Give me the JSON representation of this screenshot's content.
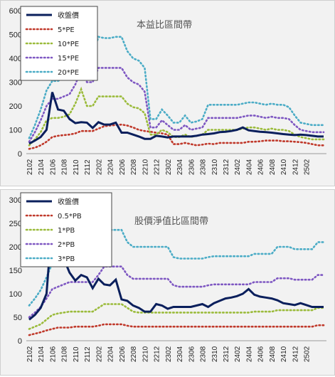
{
  "chart_data": [
    {
      "type": "line",
      "title": "本益比區間帶",
      "ylim": [
        0,
        600
      ],
      "yticks": [
        0,
        100,
        200,
        300,
        400,
        500,
        600
      ],
      "xtick_labels": [
        "2102",
        "2104",
        "2106",
        "2108",
        "2110",
        "2112",
        "2202",
        "2204",
        "2206",
        "2208",
        "2210",
        "2212",
        "2302",
        "2304",
        "2306",
        "2308",
        "2310",
        "2312",
        "2402",
        "2404",
        "2406",
        "2408",
        "2410",
        "2412",
        "2502"
      ],
      "legend_position": "top-left",
      "series": [
        {
          "name": "收盤價",
          "color": "#0a1f5c",
          "style": "solid",
          "values": [
            42,
            55,
            70,
            100,
            258,
            185,
            180,
            145,
            128,
            132,
            130,
            108,
            132,
            122,
            122,
            130,
            88,
            88,
            80,
            72,
            62,
            62,
            75,
            72,
            68,
            72,
            72,
            72,
            72,
            75,
            80,
            82,
            85,
            90,
            92,
            95,
            100,
            110,
            98,
            95,
            92,
            90,
            88,
            85,
            82,
            80,
            78,
            80,
            78,
            75,
            72,
            72
          ]
        },
        {
          "name": "5*PE",
          "color": "#c0392b",
          "style": "dotted",
          "values": [
            20,
            25,
            35,
            50,
            70,
            75,
            78,
            80,
            85,
            95,
            95,
            95,
            105,
            115,
            118,
            120,
            122,
            118,
            110,
            100,
            95,
            92,
            88,
            85,
            80,
            40,
            40,
            45,
            40,
            35,
            38,
            42,
            40,
            45,
            45,
            45,
            45,
            45,
            50,
            50,
            52,
            55,
            55,
            55,
            52,
            52,
            50,
            48,
            45,
            40,
            35,
            35
          ]
        },
        {
          "name": "10*PE",
          "color": "#9bbb3b",
          "style": "dotted",
          "values": [
            35,
            60,
            90,
            140,
            150,
            150,
            155,
            165,
            210,
            270,
            200,
            200,
            240,
            240,
            240,
            240,
            240,
            210,
            195,
            190,
            170,
            80,
            80,
            100,
            90,
            70,
            70,
            80,
            70,
            75,
            80,
            100,
            100,
            100,
            100,
            100,
            100,
            105,
            110,
            110,
            105,
            100,
            105,
            100,
            100,
            95,
            80,
            70,
            65,
            60,
            60,
            60
          ]
        },
        {
          "name": "15*PE",
          "color": "#7e57c2",
          "style": "dotted",
          "values": [
            50,
            90,
            140,
            200,
            230,
            230,
            240,
            250,
            290,
            350,
            300,
            300,
            360,
            360,
            360,
            360,
            360,
            320,
            300,
            290,
            260,
            110,
            110,
            140,
            120,
            100,
            100,
            120,
            100,
            105,
            110,
            150,
            150,
            150,
            150,
            150,
            150,
            155,
            160,
            160,
            155,
            150,
            155,
            150,
            150,
            145,
            120,
            100,
            95,
            90,
            90,
            90
          ]
        },
        {
          "name": "20*PE",
          "color": "#4bacc6",
          "style": "dotted",
          "values": [
            65,
            120,
            185,
            265,
            305,
            305,
            320,
            335,
            390,
            445,
            410,
            410,
            490,
            485,
            485,
            490,
            490,
            430,
            400,
            390,
            360,
            145,
            145,
            185,
            160,
            130,
            130,
            160,
            130,
            135,
            145,
            205,
            205,
            205,
            205,
            205,
            205,
            210,
            215,
            215,
            210,
            205,
            210,
            205,
            205,
            195,
            160,
            130,
            125,
            120,
            120,
            120
          ]
        }
      ]
    },
    {
      "type": "line",
      "title": "股價淨值比區間帶",
      "ylim": [
        0,
        300
      ],
      "yticks": [
        0,
        50,
        100,
        150,
        200,
        250,
        300
      ],
      "xtick_labels": [
        "2102",
        "2104",
        "2106",
        "2108",
        "2110",
        "2112",
        "2202",
        "2204",
        "2206",
        "2208",
        "2210",
        "2212",
        "2302",
        "2304",
        "2306",
        "2308",
        "2310",
        "2312",
        "2402",
        "2404",
        "2406",
        "2408",
        "2410",
        "2412",
        "2502"
      ],
      "legend_position": "top-left",
      "series": [
        {
          "name": "收盤價",
          "color": "#0a1f5c",
          "style": "solid",
          "values": [
            45,
            55,
            70,
            100,
            258,
            185,
            175,
            145,
            128,
            140,
            135,
            112,
            132,
            120,
            118,
            130,
            88,
            85,
            75,
            70,
            62,
            62,
            78,
            75,
            68,
            72,
            72,
            72,
            72,
            75,
            78,
            72,
            80,
            85,
            90,
            92,
            95,
            100,
            110,
            98,
            94,
            92,
            90,
            86,
            80,
            78,
            76,
            80,
            76,
            72,
            72,
            72
          ]
        },
        {
          "name": "0.5*PB",
          "color": "#c0392b",
          "style": "dotted",
          "values": [
            12,
            15,
            18,
            22,
            25,
            28,
            28,
            28,
            30,
            30,
            30,
            30,
            32,
            35,
            35,
            35,
            35,
            32,
            30,
            30,
            30,
            30,
            30,
            30,
            30,
            30,
            30,
            30,
            30,
            30,
            30,
            30,
            30,
            30,
            30,
            30,
            30,
            30,
            30,
            30,
            30,
            30,
            30,
            30,
            30,
            30,
            30,
            30,
            30,
            30,
            33,
            33
          ]
        },
        {
          "name": "1*PB",
          "color": "#9bbb3b",
          "style": "dotted",
          "values": [
            25,
            30,
            35,
            45,
            55,
            58,
            60,
            62,
            62,
            62,
            62,
            62,
            70,
            78,
            78,
            78,
            78,
            70,
            62,
            60,
            60,
            60,
            60,
            60,
            60,
            60,
            60,
            60,
            60,
            60,
            60,
            60,
            60,
            60,
            60,
            60,
            60,
            60,
            60,
            62,
            62,
            62,
            62,
            65,
            65,
            65,
            65,
            65,
            65,
            65,
            70,
            70
          ]
        },
        {
          "name": "2*PB",
          "color": "#7e57c2",
          "style": "dotted",
          "values": [
            50,
            60,
            72,
            90,
            110,
            115,
            120,
            125,
            125,
            125,
            125,
            125,
            140,
            158,
            158,
            158,
            158,
            140,
            132,
            132,
            132,
            132,
            132,
            132,
            132,
            118,
            115,
            115,
            115,
            115,
            115,
            118,
            120,
            120,
            120,
            120,
            120,
            120,
            120,
            125,
            125,
            125,
            125,
            133,
            133,
            133,
            130,
            130,
            130,
            130,
            140,
            140
          ]
        },
        {
          "name": "3*PB",
          "color": "#4bacc6",
          "style": "dotted",
          "values": [
            75,
            90,
            108,
            135,
            165,
            172,
            180,
            185,
            185,
            185,
            185,
            185,
            210,
            236,
            236,
            236,
            236,
            210,
            200,
            200,
            200,
            200,
            200,
            200,
            200,
            178,
            175,
            175,
            175,
            175,
            175,
            178,
            180,
            180,
            180,
            180,
            180,
            180,
            180,
            185,
            185,
            185,
            185,
            200,
            200,
            200,
            195,
            195,
            195,
            195,
            210,
            210
          ]
        }
      ]
    }
  ]
}
